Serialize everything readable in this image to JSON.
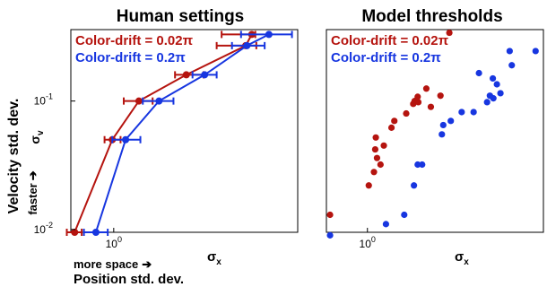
{
  "chart_data": [
    {
      "type": "line",
      "title": "Human settings",
      "xscale": "log",
      "yscale": "log",
      "xlim": [
        0.55,
        13
      ],
      "ylim": [
        0.0095,
        0.36
      ],
      "x_ticks": [
        {
          "value": 1,
          "label": "10",
          "exp": "0"
        }
      ],
      "y_ticks": [
        {
          "value": 0.1,
          "label": "10",
          "exp": "-1"
        },
        {
          "value": 0.01,
          "label": "10",
          "exp": "-2"
        }
      ],
      "xlabel_lines": [
        "more space",
        "Position std. dev."
      ],
      "xlabel_symbol": "σ",
      "xlabel_symbol_sub": "x",
      "ylabel_lines": [
        "Velocity std. dev.",
        "faster"
      ],
      "ylabel_symbol": "σ",
      "ylabel_symbol_sub": "v",
      "series": [
        {
          "name": "Color-drift = 0.02π",
          "color": "#b5140f",
          "x": [
            0.58,
            0.98,
            1.42,
            2.75,
            6.3,
            6.85
          ],
          "y": [
            0.0095,
            0.05,
            0.1,
            0.16,
            0.27,
            0.33
          ],
          "xerr_low": [
            0.52,
            0.88,
            1.15,
            2.35,
            4.2,
            4.5
          ],
          "xerr_high": [
            0.64,
            1.1,
            1.72,
            3.5,
            7.3,
            7.2
          ]
        },
        {
          "name": "Color-drift = 0.2π",
          "color": "#1736e0",
          "x": [
            0.78,
            1.18,
            1.88,
            3.55,
            6.4,
            8.7
          ],
          "y": [
            0.0095,
            0.05,
            0.1,
            0.16,
            0.27,
            0.33
          ],
          "xerr_low": [
            0.66,
            0.98,
            1.5,
            3.0,
            5.2,
            5.9
          ],
          "xerr_high": [
            0.92,
            1.45,
            2.3,
            4.2,
            8.2,
            12.0
          ]
        }
      ]
    },
    {
      "type": "scatter",
      "title": "Model thresholds",
      "xscale": "log",
      "yscale": "log",
      "xlim": [
        0.55,
        13
      ],
      "ylim": [
        0.0095,
        0.36
      ],
      "x_ticks": [
        {
          "value": 1,
          "label": "10",
          "exp": "0"
        }
      ],
      "y_ticks": [],
      "xlabel_symbol": "σ",
      "xlabel_symbol_sub": "x",
      "series": [
        {
          "name": "Color-drift = 0.02π",
          "color": "#b5140f",
          "points": [
            [
              0.58,
              0.013
            ],
            [
              1.02,
              0.022
            ],
            [
              1.1,
              0.028
            ],
            [
              1.12,
              0.042
            ],
            [
              1.15,
              0.036
            ],
            [
              1.21,
              0.032
            ],
            [
              1.27,
              0.045
            ],
            [
              1.13,
              0.052
            ],
            [
              1.42,
              0.062
            ],
            [
              1.48,
              0.07
            ],
            [
              1.76,
              0.08
            ],
            [
              1.95,
              0.095
            ],
            [
              1.99,
              0.1
            ],
            [
              2.1,
              0.098
            ],
            [
              2.08,
              0.108
            ],
            [
              2.52,
              0.09
            ],
            [
              2.9,
              0.11
            ],
            [
              3.3,
              0.34
            ],
            [
              2.36,
              0.125
            ]
          ]
        },
        {
          "name": "Color-drift = 0.2π",
          "color": "#1736e0",
          "points": [
            [
              0.58,
              0.009
            ],
            [
              1.31,
              0.011
            ],
            [
              1.71,
              0.013
            ],
            [
              1.97,
              0.022
            ],
            [
              2.08,
              0.032
            ],
            [
              2.22,
              0.032
            ],
            [
              2.96,
              0.055
            ],
            [
              3.02,
              0.065
            ],
            [
              3.37,
              0.07
            ],
            [
              3.95,
              0.082
            ],
            [
              4.7,
              0.082
            ],
            [
              5.72,
              0.098
            ],
            [
              5.96,
              0.11
            ],
            [
              6.27,
              0.105
            ],
            [
              6.95,
              0.115
            ],
            [
              5.08,
              0.165
            ],
            [
              6.22,
              0.15
            ],
            [
              6.6,
              0.135
            ],
            [
              7.95,
              0.245
            ],
            [
              8.2,
              0.19
            ],
            [
              11.6,
              0.245
            ]
          ]
        }
      ]
    }
  ]
}
